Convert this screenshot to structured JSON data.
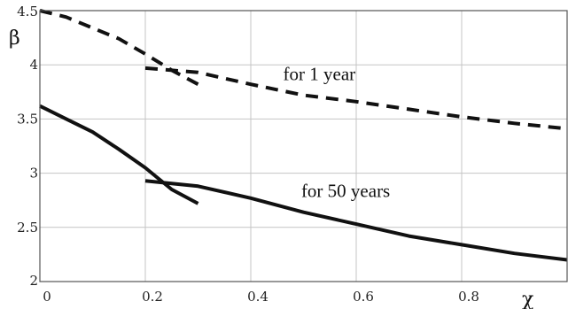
{
  "chart_data": {
    "type": "line",
    "xlabel": "χ",
    "ylabel": "β",
    "xlim": [
      0,
      1
    ],
    "ylim": [
      2,
      4.5
    ],
    "grid": true,
    "xticks": [
      {
        "value": 0,
        "label": "0"
      },
      {
        "value": 0.2,
        "label": "0.2"
      },
      {
        "value": 0.4,
        "label": "0.4"
      },
      {
        "value": 0.6,
        "label": "0.6"
      },
      {
        "value": 0.8,
        "label": "0.8"
      }
    ],
    "yticks": [
      {
        "value": 2,
        "label": "2"
      },
      {
        "value": 2.5,
        "label": "2.5"
      },
      {
        "value": 3,
        "label": "3"
      },
      {
        "value": 3.5,
        "label": "3.5"
      },
      {
        "value": 4,
        "label": "4"
      },
      {
        "value": 4.5,
        "label": "4.5"
      }
    ],
    "series": [
      {
        "style": "dashed",
        "x": [
          0,
          0.05,
          0.1,
          0.15,
          0.2,
          0.25,
          0.3
        ],
        "y": [
          4.5,
          4.44,
          4.34,
          4.24,
          4.1,
          3.95,
          3.82
        ]
      },
      {
        "style": "dashed",
        "x": [
          0.2,
          0.3,
          0.4,
          0.5,
          0.6,
          0.7,
          0.8,
          0.9,
          1.0
        ],
        "y": [
          3.97,
          3.93,
          3.82,
          3.72,
          3.66,
          3.59,
          3.52,
          3.46,
          3.41
        ]
      },
      {
        "style": "solid",
        "x": [
          0,
          0.05,
          0.1,
          0.15,
          0.2,
          0.25,
          0.3
        ],
        "y": [
          3.62,
          3.5,
          3.38,
          3.22,
          3.05,
          2.85,
          2.72
        ]
      },
      {
        "style": "solid",
        "x": [
          0.2,
          0.3,
          0.4,
          0.5,
          0.6,
          0.7,
          0.8,
          0.9,
          1.0
        ],
        "y": [
          2.93,
          2.88,
          2.77,
          2.64,
          2.53,
          2.42,
          2.34,
          2.26,
          2.2
        ]
      }
    ],
    "annotations": [
      {
        "text": "for 1 year",
        "x": 0.53,
        "y": 3.86
      },
      {
        "text": "for 50 years",
        "x": 0.58,
        "y": 2.78
      }
    ]
  }
}
